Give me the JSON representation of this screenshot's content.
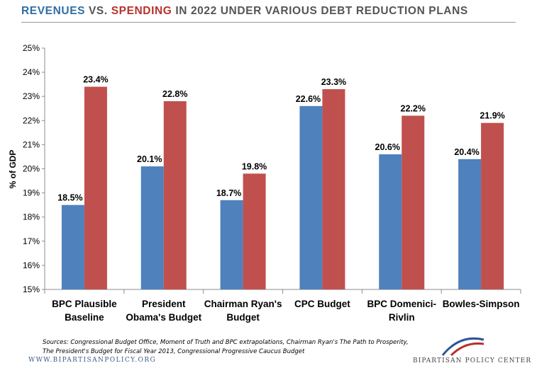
{
  "title": {
    "part1": "REVENUES",
    "part2": " VS. ",
    "part3": "SPENDING",
    "part4": " IN 2022 UNDER VARIOUS DEBT REDUCTION PLANS"
  },
  "colors": {
    "revenue": "#4f81bd",
    "spending": "#c0504d",
    "title_revenue": "#2f6ea3",
    "title_spending": "#b7312c"
  },
  "chart_data": {
    "type": "bar",
    "ylabel": "% of GDP",
    "ylim": [
      15,
      25
    ],
    "yticks": [
      "15%",
      "16%",
      "17%",
      "18%",
      "19%",
      "20%",
      "21%",
      "22%",
      "23%",
      "24%",
      "25%"
    ],
    "categories": [
      [
        "BPC Plausible",
        "Baseline"
      ],
      [
        "President",
        "Obama's Budget"
      ],
      [
        "Chairman Ryan's",
        "Budget"
      ],
      [
        "CPC Budget"
      ],
      [
        "BPC Domenici-",
        "Rivlin"
      ],
      [
        "Bowles-Simpson"
      ]
    ],
    "series": [
      {
        "values": [
          18.5,
          20.1,
          18.7,
          22.6,
          20.6,
          20.4
        ],
        "labels": [
          "18.5%",
          "20.1%",
          "18.7%",
          "22.6%",
          "20.6%",
          "20.4%"
        ]
      },
      {
        "values": [
          23.4,
          22.8,
          19.8,
          23.3,
          22.2,
          21.9
        ],
        "labels": [
          "23.4%",
          "22.8%",
          "19.8%",
          "23.3%",
          "22.2%",
          "21.9%"
        ]
      }
    ],
    "grid": false,
    "legend": "none"
  },
  "footer": {
    "sources": "Sources: Congressional Budget Office, Moment of Truth and BPC extrapolations, Chairman Ryan's The Path to Prosperity, The President's Budget for Fiscal Year 2013, Congressional Progressive Caucus Budget",
    "url": "WWW.BIPARTISANPOLICY.ORG",
    "logo_text": "BIPARTISAN POLICY CENTER"
  }
}
